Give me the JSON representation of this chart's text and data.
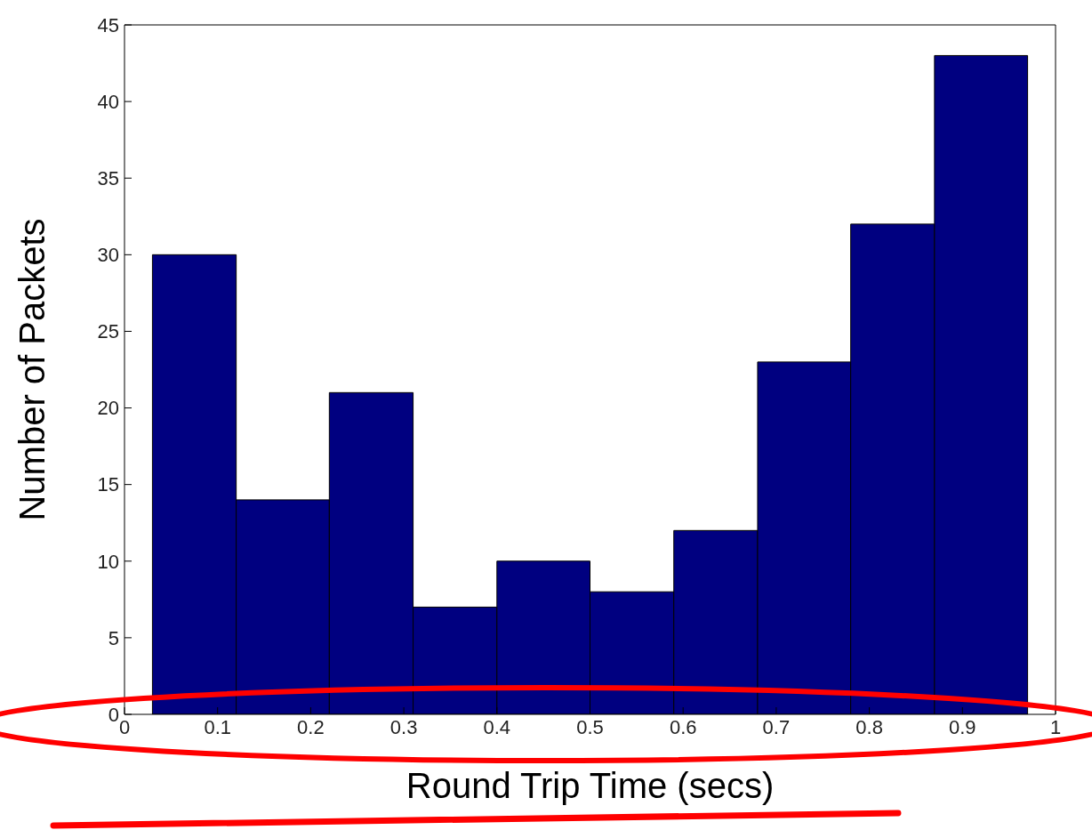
{
  "chart_data": {
    "type": "histogram",
    "xlabel": "Round Trip Time (secs)",
    "ylabel": "Number of Packets",
    "bins": [
      0.03,
      0.12,
      0.22,
      0.31,
      0.4,
      0.5,
      0.59,
      0.68,
      0.78,
      0.87,
      0.97
    ],
    "values": [
      30,
      14,
      21,
      7,
      10,
      8,
      12,
      23,
      32,
      43
    ],
    "color": "#000080",
    "xlim": [
      0,
      1
    ],
    "xticks": [
      0,
      0.1,
      0.2,
      0.3,
      0.4,
      0.5,
      0.6,
      0.7,
      0.8,
      0.9,
      1
    ],
    "ylim": [
      0,
      45
    ],
    "yticks": [
      0,
      5,
      10,
      15,
      20,
      25,
      30,
      35,
      40,
      45
    ],
    "grid": false
  }
}
